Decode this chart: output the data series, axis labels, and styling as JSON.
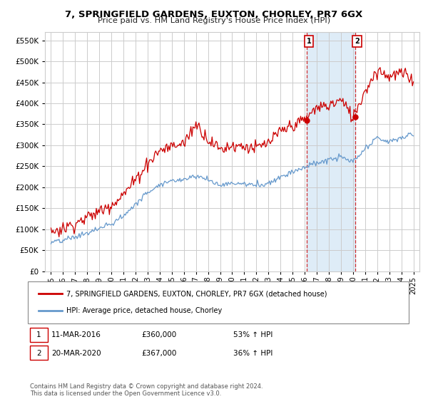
{
  "title": "7, SPRINGFIELD GARDENS, EUXTON, CHORLEY, PR7 6GX",
  "subtitle": "Price paid vs. HM Land Registry's House Price Index (HPI)",
  "red_label": "7, SPRINGFIELD GARDENS, EUXTON, CHORLEY, PR7 6GX (detached house)",
  "blue_label": "HPI: Average price, detached house, Chorley",
  "point1_label": "11-MAR-2016",
  "point1_price": "£360,000",
  "point1_hpi": "53% ↑ HPI",
  "point1_year": 2016.2,
  "point1_value": 360000,
  "point2_label": "20-MAR-2020",
  "point2_price": "£367,000",
  "point2_hpi": "36% ↑ HPI",
  "point2_year": 2020.2,
  "point2_value": 367000,
  "footnote": "Contains HM Land Registry data © Crown copyright and database right 2024.\nThis data is licensed under the Open Government Licence v3.0.",
  "ylim": [
    0,
    570000
  ],
  "yticks": [
    0,
    50000,
    100000,
    150000,
    200000,
    250000,
    300000,
    350000,
    400000,
    450000,
    500000,
    550000
  ],
  "red_color": "#cc0000",
  "blue_color": "#6699cc",
  "shade_color": "#d0e4f5",
  "grid_color": "#cccccc",
  "bg_color": "#ffffff"
}
